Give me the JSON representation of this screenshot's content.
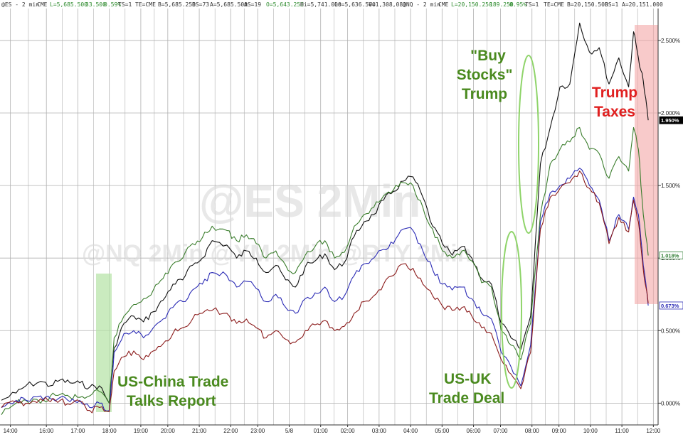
{
  "header": {
    "es_symbol": "@ES - 2 min",
    "es_exchange": "CME",
    "es_last": "L=5,685.500",
    "es_change": "33.500",
    "es_pct": "0.59%",
    "es_ts": "TS=1",
    "es_te": "TE=CME",
    "es_bid": "B=5,685.250",
    "es_bidsize": "BS=73",
    "es_ask": "A=5,685.500",
    "es_asksize": "AS=19",
    "es_open": "O=5,643.250",
    "es_high": "Hi=5,741.000",
    "es_low": "Lo=5,636.500",
    "es_vol": "V=1,308,083",
    "nq_symbol": "@NQ - 2 min",
    "nq_exchange": "CME",
    "nq_last": "L=20,150.250",
    "nq_change": "189.250",
    "nq_pct": "0.95%",
    "nq_ts": "TS=1",
    "nq_te": "TE=CME",
    "nq_bid": "B=20,150.500",
    "nq_bidsize": "BS=1",
    "nq_ask": "A=20,151.000"
  },
  "watermarks": {
    "main": "@ES 2Min",
    "secondary": "@NQ 2Min @YM 2Min @RTY 2Min"
  },
  "annotations": {
    "china_line1": "US-China Trade",
    "china_line2": "Talks Report",
    "uk_line1": "US-UK",
    "uk_line2": "Trade Deal",
    "buy_line1": "\"Buy",
    "buy_line2": "Stocks\"",
    "buy_line3": "Trump",
    "taxes_line1": "Trump",
    "taxes_line2": "Taxes"
  },
  "colors": {
    "black_series": "#111111",
    "green_series": "#3a7d2c",
    "blue_series": "#2b2bb5",
    "red_series": "#8b1a1a",
    "annotation_green": "#4a8a1f",
    "annotation_red": "#e02020",
    "trump_taxes_band": "#f4a6a6",
    "china_band": "#b4e3a4",
    "ellipse": "#8fd46a",
    "grid": "#b0b0b0"
  },
  "chart_data": {
    "type": "line",
    "ylim": [
      -0.15,
      2.72
    ],
    "y_unit": "%",
    "y_ticks": [
      "0.000%",
      "0.500%",
      "1.000%",
      "1.500%",
      "2.000%",
      "2.500%"
    ],
    "y_tick_values": [
      0.0,
      0.5,
      1.0,
      1.5,
      2.0,
      2.5
    ],
    "x_ticks": [
      "14:00",
      "16:00",
      "17:00",
      "18:00",
      "19:00",
      "20:00",
      "21:00",
      "22:00",
      "23:00",
      "5/8",
      "01:00",
      "02:00",
      "03:00",
      "04:00",
      "05:00",
      "06:00",
      "07:00",
      "08:00",
      "09:00",
      "10:00",
      "11:00",
      "12:00"
    ],
    "x_range": [
      0,
      133
    ],
    "x_tick_index": [
      2,
      10,
      17,
      24,
      31,
      37,
      44,
      51,
      57,
      64,
      71,
      77,
      84,
      91,
      98,
      105,
      111,
      118,
      124,
      131,
      138,
      145
    ],
    "last_labels": [
      "1.950%",
      "1.018%",
      "0.673%"
    ],
    "series": [
      {
        "color_key": "black_series",
        "points": [
          [
            0,
            0.02
          ],
          [
            3,
            0.07
          ],
          [
            5,
            0.12
          ],
          [
            8,
            0.15
          ],
          [
            10,
            0.12
          ],
          [
            12,
            0.16
          ],
          [
            14,
            0.14
          ],
          [
            16,
            0.14
          ],
          [
            18,
            0.11
          ],
          [
            20,
            0.12
          ],
          [
            22,
            0.0
          ],
          [
            23,
            0.38
          ],
          [
            25,
            0.55
          ],
          [
            27,
            0.6
          ],
          [
            29,
            0.56
          ],
          [
            31,
            0.63
          ],
          [
            33,
            0.71
          ],
          [
            35,
            0.82
          ],
          [
            37,
            0.85
          ],
          [
            39,
            0.95
          ],
          [
            41,
            1.0
          ],
          [
            43,
            1.12
          ],
          [
            46,
            1.09
          ],
          [
            48,
            1.0
          ],
          [
            50,
            1.05
          ],
          [
            52,
            1.0
          ],
          [
            54,
            0.9
          ],
          [
            56,
            0.95
          ],
          [
            58,
            0.85
          ],
          [
            60,
            0.8
          ],
          [
            62,
            0.94
          ],
          [
            64,
            0.98
          ],
          [
            66,
            1.03
          ],
          [
            68,
            0.92
          ],
          [
            70,
            0.97
          ],
          [
            72,
            1.15
          ],
          [
            74,
            1.25
          ],
          [
            76,
            1.3
          ],
          [
            78,
            1.4
          ],
          [
            80,
            1.46
          ],
          [
            82,
            1.53
          ],
          [
            84,
            1.56
          ],
          [
            86,
            1.42
          ],
          [
            88,
            1.22
          ],
          [
            90,
            1.1
          ],
          [
            92,
            1.02
          ],
          [
            94,
            1.08
          ],
          [
            96,
            1.0
          ],
          [
            98,
            0.86
          ],
          [
            100,
            0.82
          ],
          [
            102,
            0.55
          ],
          [
            104,
            0.45
          ],
          [
            106,
            0.37
          ],
          [
            108,
            0.6
          ],
          [
            110,
            1.65
          ],
          [
            112,
            1.9
          ],
          [
            114,
            2.18
          ],
          [
            116,
            2.2
          ],
          [
            118,
            2.62
          ],
          [
            120,
            2.42
          ],
          [
            122,
            2.45
          ],
          [
            124,
            2.2
          ],
          [
            126,
            2.38
          ],
          [
            128,
            2.18
          ],
          [
            129,
            2.56
          ],
          [
            130,
            2.38
          ],
          [
            131,
            2.22
          ],
          [
            132,
            1.95
          ]
        ]
      },
      {
        "color_key": "green_series",
        "points": [
          [
            0,
            -0.08
          ],
          [
            3,
            0.0
          ],
          [
            5,
            0.02
          ],
          [
            8,
            0.0
          ],
          [
            10,
            0.05
          ],
          [
            12,
            0.06
          ],
          [
            14,
            0.04
          ],
          [
            16,
            0.04
          ],
          [
            18,
            0.05
          ],
          [
            20,
            0.08
          ],
          [
            22,
            0.0
          ],
          [
            23,
            0.45
          ],
          [
            25,
            0.6
          ],
          [
            27,
            0.68
          ],
          [
            29,
            0.72
          ],
          [
            31,
            0.78
          ],
          [
            33,
            0.86
          ],
          [
            35,
            0.96
          ],
          [
            37,
            1.0
          ],
          [
            39,
            1.1
          ],
          [
            41,
            1.14
          ],
          [
            43,
            1.22
          ],
          [
            46,
            1.19
          ],
          [
            48,
            1.12
          ],
          [
            50,
            1.16
          ],
          [
            52,
            1.1
          ],
          [
            54,
            1.0
          ],
          [
            56,
            1.05
          ],
          [
            58,
            0.95
          ],
          [
            60,
            0.9
          ],
          [
            62,
            1.02
          ],
          [
            64,
            1.08
          ],
          [
            66,
            1.12
          ],
          [
            68,
            1.0
          ],
          [
            70,
            1.04
          ],
          [
            72,
            1.22
          ],
          [
            74,
            1.3
          ],
          [
            76,
            1.35
          ],
          [
            78,
            1.43
          ],
          [
            80,
            1.47
          ],
          [
            82,
            1.52
          ],
          [
            84,
            1.5
          ],
          [
            86,
            1.35
          ],
          [
            88,
            1.2
          ],
          [
            90,
            1.05
          ],
          [
            92,
            1.0
          ],
          [
            94,
            1.05
          ],
          [
            96,
            0.98
          ],
          [
            98,
            0.83
          ],
          [
            100,
            0.8
          ],
          [
            102,
            0.5
          ],
          [
            104,
            0.4
          ],
          [
            106,
            0.3
          ],
          [
            108,
            0.55
          ],
          [
            110,
            1.3
          ],
          [
            112,
            1.65
          ],
          [
            114,
            1.75
          ],
          [
            116,
            1.8
          ],
          [
            118,
            1.9
          ],
          [
            120,
            1.75
          ],
          [
            122,
            1.72
          ],
          [
            124,
            1.55
          ],
          [
            126,
            1.7
          ],
          [
            128,
            1.6
          ],
          [
            129,
            1.9
          ],
          [
            130,
            1.75
          ],
          [
            131,
            1.3
          ],
          [
            132,
            1.018
          ]
        ]
      },
      {
        "color_key": "blue_series",
        "points": [
          [
            0,
            -0.03
          ],
          [
            3,
            0.02
          ],
          [
            5,
            0.02
          ],
          [
            8,
            0.05
          ],
          [
            10,
            0.03
          ],
          [
            12,
            0.04
          ],
          [
            14,
            0.01
          ],
          [
            16,
            0.02
          ],
          [
            18,
            -0.03
          ],
          [
            20,
            0.0
          ],
          [
            22,
            -0.05
          ],
          [
            23,
            0.35
          ],
          [
            25,
            0.48
          ],
          [
            27,
            0.5
          ],
          [
            29,
            0.45
          ],
          [
            31,
            0.52
          ],
          [
            33,
            0.58
          ],
          [
            35,
            0.66
          ],
          [
            37,
            0.7
          ],
          [
            39,
            0.78
          ],
          [
            41,
            0.82
          ],
          [
            43,
            0.9
          ],
          [
            46,
            0.88
          ],
          [
            48,
            0.8
          ],
          [
            50,
            0.84
          ],
          [
            52,
            0.79
          ],
          [
            54,
            0.7
          ],
          [
            56,
            0.75
          ],
          [
            58,
            0.66
          ],
          [
            60,
            0.62
          ],
          [
            62,
            0.72
          ],
          [
            64,
            0.76
          ],
          [
            66,
            0.8
          ],
          [
            68,
            0.7
          ],
          [
            70,
            0.74
          ],
          [
            72,
            0.88
          ],
          [
            74,
            0.96
          ],
          [
            76,
            1.0
          ],
          [
            78,
            1.06
          ],
          [
            80,
            1.1
          ],
          [
            82,
            1.2
          ],
          [
            84,
            1.19
          ],
          [
            86,
            1.05
          ],
          [
            88,
            0.92
          ],
          [
            90,
            0.82
          ],
          [
            92,
            0.78
          ],
          [
            94,
            0.8
          ],
          [
            96,
            0.72
          ],
          [
            98,
            0.62
          ],
          [
            100,
            0.58
          ],
          [
            102,
            0.35
          ],
          [
            104,
            0.25
          ],
          [
            106,
            0.12
          ],
          [
            108,
            0.4
          ],
          [
            110,
            1.25
          ],
          [
            112,
            1.45
          ],
          [
            114,
            1.5
          ],
          [
            116,
            1.55
          ],
          [
            118,
            1.62
          ],
          [
            120,
            1.5
          ],
          [
            122,
            1.4
          ],
          [
            124,
            1.12
          ],
          [
            126,
            1.3
          ],
          [
            128,
            1.2
          ],
          [
            129,
            1.42
          ],
          [
            130,
            1.3
          ],
          [
            131,
            0.95
          ],
          [
            132,
            0.673
          ]
        ]
      },
      {
        "color_key": "red_series",
        "points": [
          [
            0,
            -0.03
          ],
          [
            3,
            0.01
          ],
          [
            5,
            0.0
          ],
          [
            8,
            0.03
          ],
          [
            10,
            0.01
          ],
          [
            12,
            0.02
          ],
          [
            14,
            -0.01
          ],
          [
            16,
            0.01
          ],
          [
            18,
            -0.05
          ],
          [
            20,
            -0.03
          ],
          [
            22,
            -0.06
          ],
          [
            23,
            0.22
          ],
          [
            25,
            0.32
          ],
          [
            27,
            0.36
          ],
          [
            29,
            0.3
          ],
          [
            31,
            0.36
          ],
          [
            33,
            0.41
          ],
          [
            35,
            0.48
          ],
          [
            37,
            0.52
          ],
          [
            39,
            0.58
          ],
          [
            41,
            0.62
          ],
          [
            43,
            0.64
          ],
          [
            46,
            0.62
          ],
          [
            48,
            0.55
          ],
          [
            50,
            0.58
          ],
          [
            52,
            0.52
          ],
          [
            54,
            0.45
          ],
          [
            56,
            0.5
          ],
          [
            58,
            0.44
          ],
          [
            60,
            0.42
          ],
          [
            62,
            0.5
          ],
          [
            64,
            0.54
          ],
          [
            66,
            0.57
          ],
          [
            68,
            0.5
          ],
          [
            70,
            0.53
          ],
          [
            72,
            0.62
          ],
          [
            74,
            0.7
          ],
          [
            76,
            0.74
          ],
          [
            78,
            0.82
          ],
          [
            80,
            0.88
          ],
          [
            82,
            0.96
          ],
          [
            84,
            0.93
          ],
          [
            86,
            0.82
          ],
          [
            88,
            0.74
          ],
          [
            90,
            0.67
          ],
          [
            92,
            0.64
          ],
          [
            94,
            0.66
          ],
          [
            96,
            0.6
          ],
          [
            98,
            0.52
          ],
          [
            100,
            0.48
          ],
          [
            102,
            0.3
          ],
          [
            104,
            0.2
          ],
          [
            106,
            0.1
          ],
          [
            108,
            0.35
          ],
          [
            110,
            1.2
          ],
          [
            112,
            1.42
          ],
          [
            114,
            1.48
          ],
          [
            116,
            1.52
          ],
          [
            118,
            1.6
          ],
          [
            120,
            1.48
          ],
          [
            122,
            1.38
          ],
          [
            124,
            1.1
          ],
          [
            126,
            1.28
          ],
          [
            128,
            1.18
          ],
          [
            129,
            1.4
          ],
          [
            130,
            1.25
          ],
          [
            131,
            0.92
          ],
          [
            132,
            0.69
          ]
        ]
      }
    ]
  }
}
